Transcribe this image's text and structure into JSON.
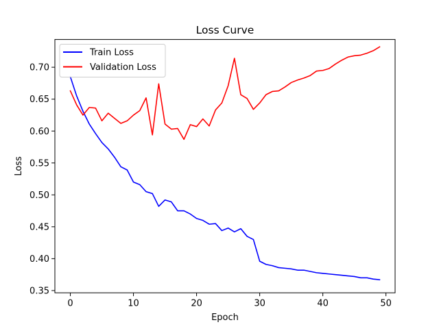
{
  "chart_data": {
    "type": "line",
    "title": "Loss Curve",
    "xlabel": "Epoch",
    "ylabel": "Loss",
    "xlim": [
      -2.45,
      51.45
    ],
    "ylim": [
      0.3465,
      0.7435
    ],
    "xticks": [
      0,
      10,
      20,
      30,
      40,
      50
    ],
    "yticks": [
      0.35,
      0.4,
      0.45,
      0.5,
      0.55,
      0.6,
      0.65,
      0.7
    ],
    "ytick_labels": [
      "0.35",
      "0.40",
      "0.45",
      "0.50",
      "0.55",
      "0.60",
      "0.65",
      "0.70"
    ],
    "grid": false,
    "legend_position": "upper-left",
    "x": [
      0,
      1,
      2,
      3,
      4,
      5,
      6,
      7,
      8,
      9,
      10,
      11,
      12,
      13,
      14,
      15,
      16,
      17,
      18,
      19,
      20,
      21,
      22,
      23,
      24,
      25,
      26,
      27,
      28,
      29,
      30,
      31,
      32,
      33,
      34,
      35,
      36,
      37,
      38,
      39,
      40,
      41,
      42,
      43,
      44,
      45,
      46,
      47,
      48,
      49
    ],
    "series": [
      {
        "name": "Train Loss",
        "color": "#0000ff",
        "values": [
          0.685,
          0.655,
          0.631,
          0.611,
          0.596,
          0.582,
          0.572,
          0.559,
          0.544,
          0.539,
          0.52,
          0.516,
          0.505,
          0.502,
          0.482,
          0.492,
          0.489,
          0.475,
          0.475,
          0.47,
          0.463,
          0.46,
          0.454,
          0.455,
          0.444,
          0.448,
          0.442,
          0.447,
          0.435,
          0.43,
          0.396,
          0.391,
          0.389,
          0.386,
          0.385,
          0.384,
          0.382,
          0.382,
          0.38,
          0.378,
          0.377,
          0.376,
          0.375,
          0.374,
          0.373,
          0.372,
          0.37,
          0.37,
          0.368,
          0.367
        ]
      },
      {
        "name": "Validation Loss",
        "color": "#ff0000",
        "values": [
          0.663,
          0.641,
          0.625,
          0.637,
          0.636,
          0.616,
          0.628,
          0.62,
          0.612,
          0.616,
          0.625,
          0.632,
          0.652,
          0.594,
          0.674,
          0.611,
          0.603,
          0.604,
          0.587,
          0.61,
          0.607,
          0.619,
          0.608,
          0.633,
          0.644,
          0.671,
          0.714,
          0.657,
          0.651,
          0.634,
          0.644,
          0.657,
          0.662,
          0.663,
          0.669,
          0.676,
          0.68,
          0.683,
          0.687,
          0.694,
          0.695,
          0.698,
          0.705,
          0.711,
          0.716,
          0.718,
          0.719,
          0.722,
          0.726,
          0.732
        ]
      }
    ]
  }
}
